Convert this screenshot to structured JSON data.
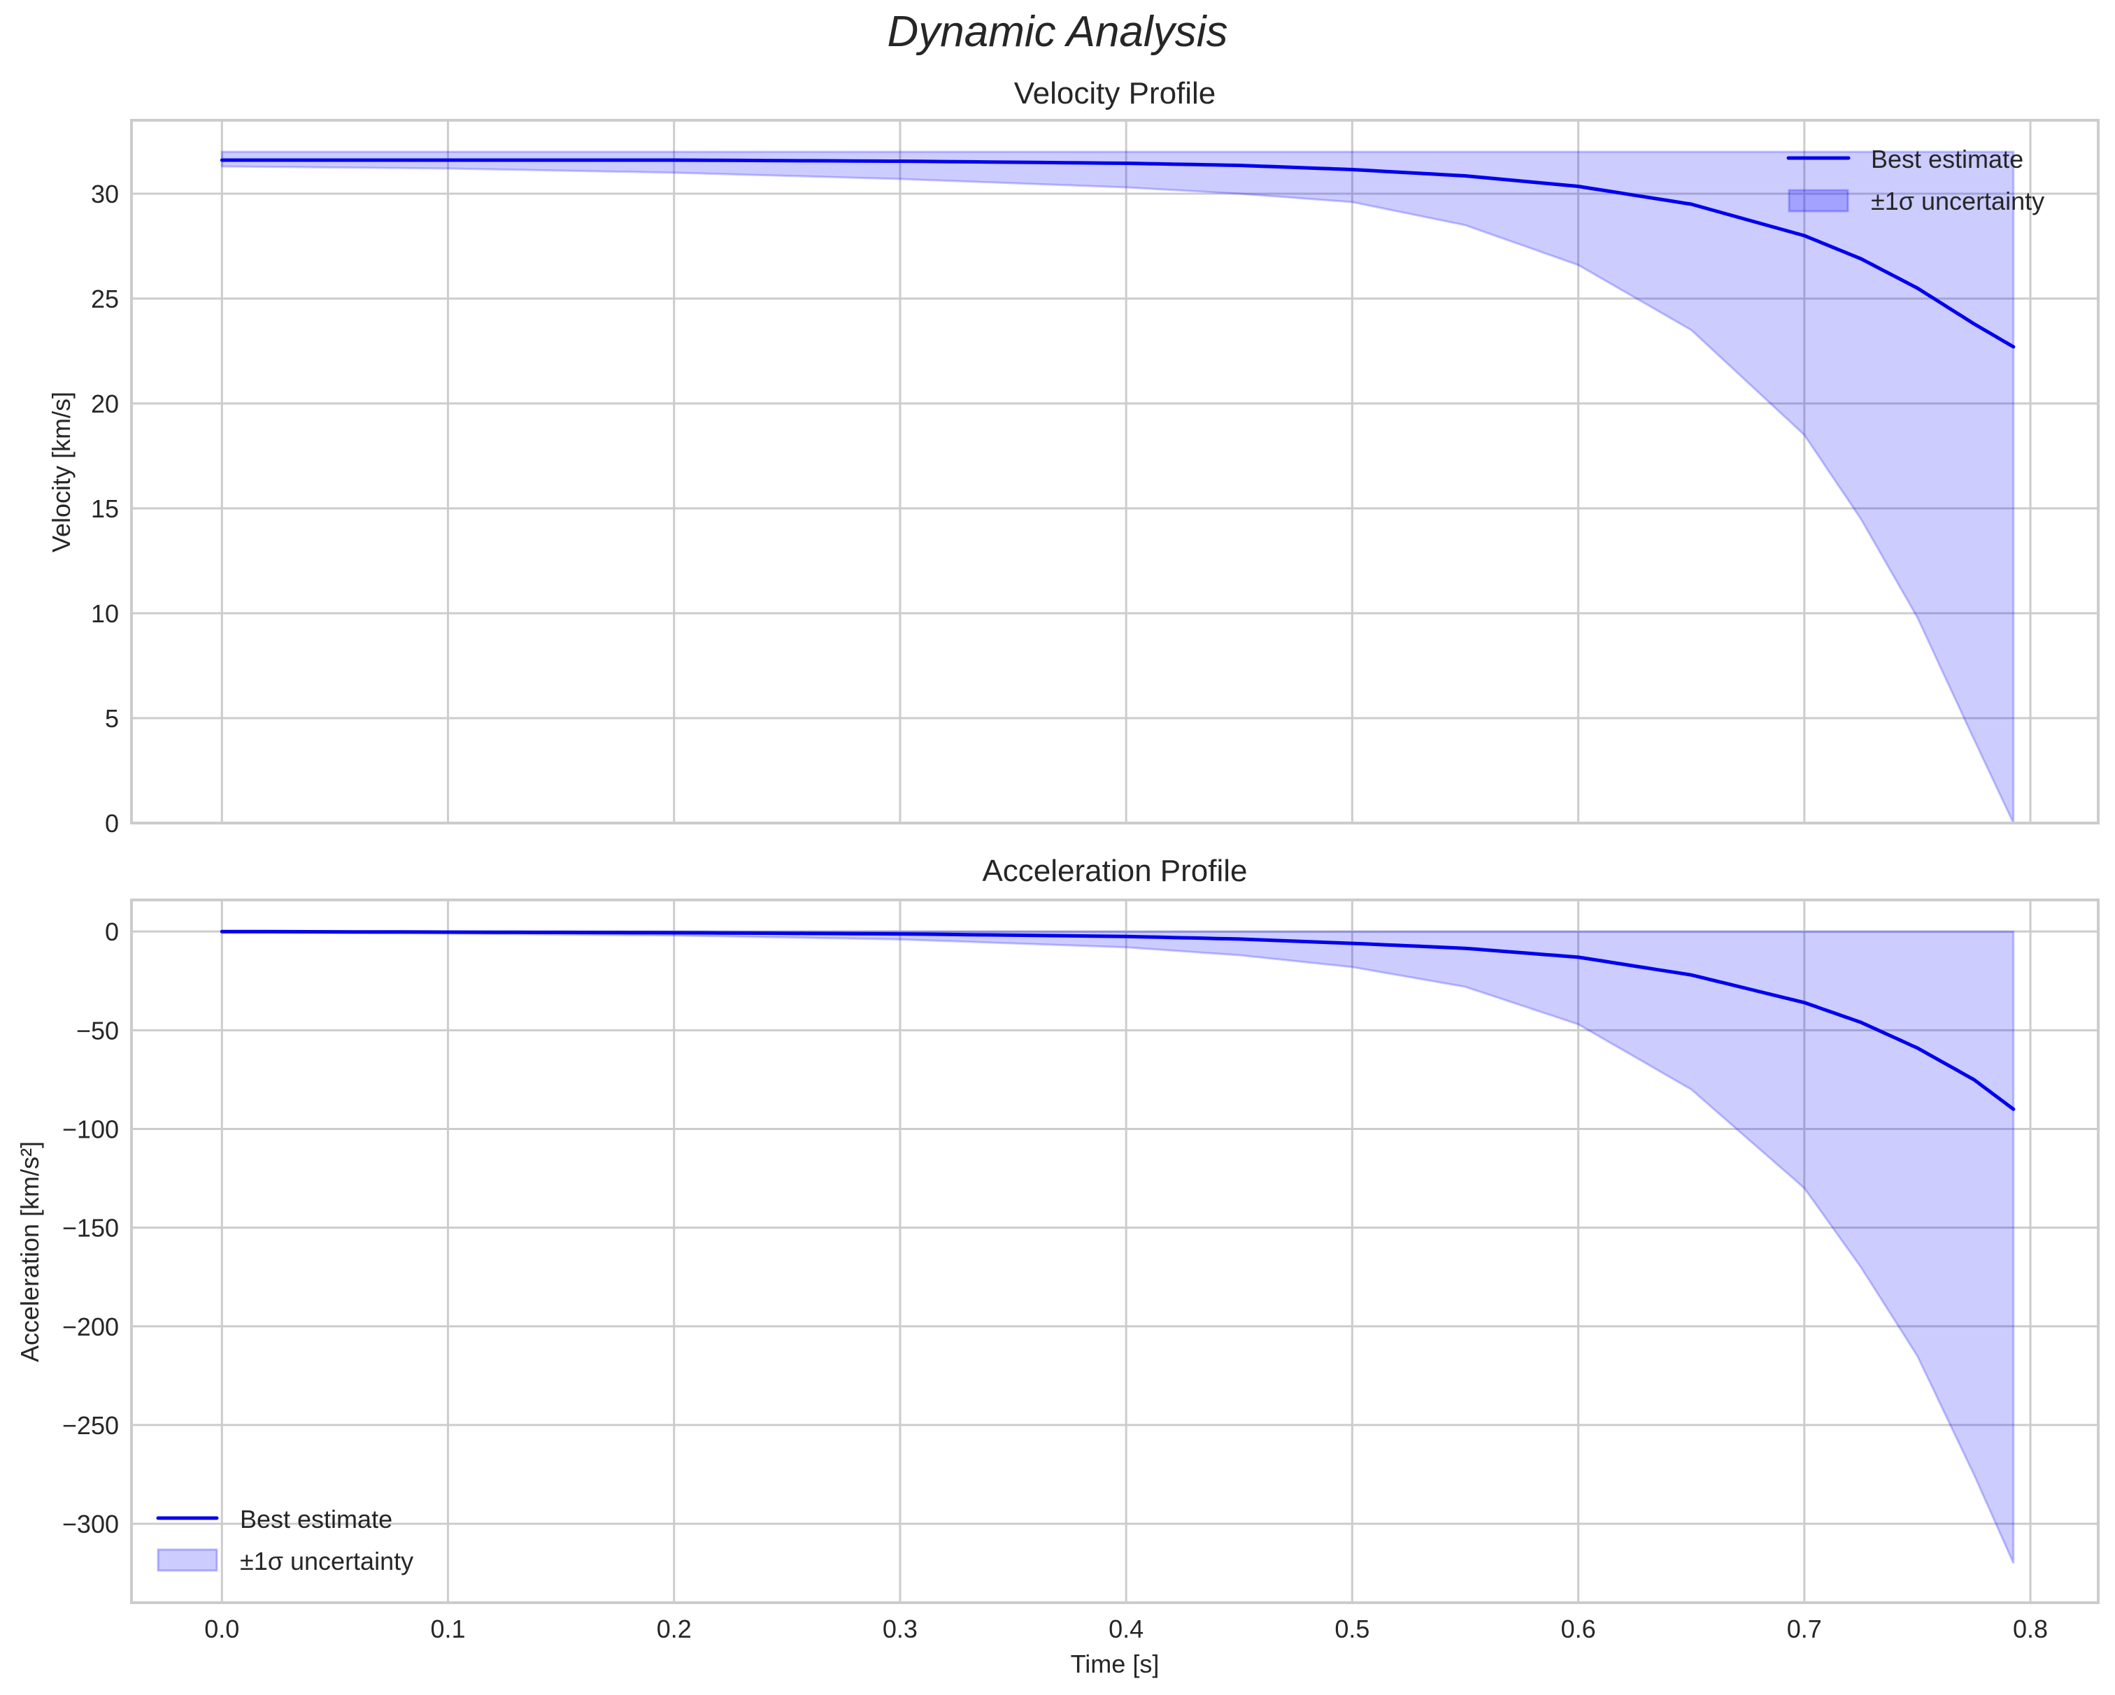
{
  "figure": {
    "title": "Dynamic Analysis"
  },
  "colors": {
    "line": "#0000ee",
    "band_fill": "#0000ff",
    "band_alpha": 0.2,
    "grid": "#cccccc",
    "text": "#262626"
  },
  "legend": {
    "line_label": "Best estimate",
    "band_label": "±1σ uncertainty"
  },
  "chart_data": [
    {
      "type": "line",
      "title": "Velocity Profile",
      "xlabel": "",
      "ylabel": "Velocity [km/s]",
      "xlim": [
        -0.04,
        0.83
      ],
      "ylim": [
        0,
        33.5
      ],
      "x_ticks": [
        "0.0",
        "0.1",
        "0.2",
        "0.3",
        "0.4",
        "0.5",
        "0.6",
        "0.7",
        "0.8"
      ],
      "y_ticks": [
        "0",
        "5",
        "10",
        "15",
        "20",
        "25",
        "30"
      ],
      "grid": true,
      "legend_position": "upper right",
      "x": [
        0.0,
        0.1,
        0.2,
        0.3,
        0.4,
        0.45,
        0.5,
        0.55,
        0.6,
        0.65,
        0.7,
        0.725,
        0.75,
        0.775,
        0.7925
      ],
      "series": [
        {
          "name": "Best estimate",
          "values": [
            31.6,
            31.6,
            31.6,
            31.55,
            31.45,
            31.35,
            31.15,
            30.85,
            30.35,
            29.5,
            28.0,
            26.9,
            25.5,
            23.8,
            22.7
          ]
        },
        {
          "name": "±1σ upper",
          "values": [
            32.0,
            32.0,
            32.0,
            32.0,
            32.0,
            32.0,
            32.0,
            32.0,
            32.0,
            32.0,
            32.0,
            32.0,
            32.0,
            32.0,
            32.0
          ]
        },
        {
          "name": "±1σ lower",
          "values": [
            31.3,
            31.2,
            31.0,
            30.7,
            30.3,
            30.0,
            29.6,
            28.5,
            26.6,
            23.5,
            18.5,
            14.5,
            9.8,
            4.0,
            0.0
          ]
        }
      ]
    },
    {
      "type": "line",
      "title": "Acceleration Profile",
      "xlabel": "Time [s]",
      "ylabel": "Acceleration [km/s²]",
      "xlim": [
        -0.04,
        0.83
      ],
      "ylim": [
        -340,
        16
      ],
      "x_ticks": [
        "0.0",
        "0.1",
        "0.2",
        "0.3",
        "0.4",
        "0.5",
        "0.6",
        "0.7",
        "0.8"
      ],
      "y_ticks": [
        "0",
        "−50",
        "−100",
        "−150",
        "−200",
        "−250",
        "−300"
      ],
      "grid": true,
      "legend_position": "lower left",
      "x": [
        0.0,
        0.1,
        0.2,
        0.3,
        0.4,
        0.45,
        0.5,
        0.55,
        0.6,
        0.65,
        0.7,
        0.725,
        0.75,
        0.775,
        0.7925
      ],
      "series": [
        {
          "name": "Best estimate",
          "values": [
            0,
            -0.3,
            -0.6,
            -1.2,
            -2.5,
            -3.8,
            -6.0,
            -8.5,
            -13,
            -22,
            -36,
            -46,
            -59,
            -75,
            -90
          ]
        },
        {
          "name": "±1σ upper",
          "values": [
            0,
            0,
            0,
            0,
            0,
            0,
            0,
            0,
            0,
            0,
            0,
            0,
            0,
            0,
            0
          ]
        },
        {
          "name": "±1σ lower",
          "values": [
            -0.5,
            -1,
            -2,
            -4,
            -8,
            -12,
            -18,
            -28,
            -47,
            -80,
            -130,
            -170,
            -215,
            -275,
            -320
          ]
        }
      ]
    }
  ]
}
